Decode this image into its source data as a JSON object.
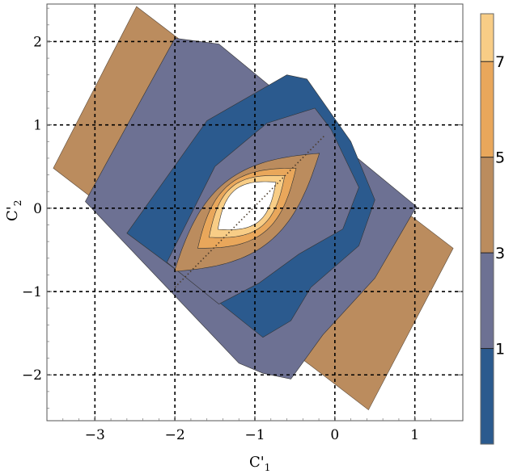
{
  "chart_data": {
    "type": "contour",
    "xlabel": "C'1",
    "ylabel": "C'2",
    "xlabel_main": "C'",
    "xlabel_sub": "1",
    "ylabel_main": "C'",
    "ylabel_sub": "2",
    "xlim": [
      -3.6,
      1.6
    ],
    "ylim": [
      -2.55,
      2.45
    ],
    "x_ticks": [
      -3,
      -2,
      -1,
      0,
      1
    ],
    "x_tick_labels": [
      "−3",
      "−2",
      "−1",
      "0",
      "1"
    ],
    "y_ticks": [
      -2,
      -1,
      0,
      1,
      2
    ],
    "y_tick_labels": [
      "−2",
      "−1",
      "0",
      "1",
      "2"
    ],
    "grid": true,
    "grid_style": "dashed",
    "levels": [
      0,
      1,
      3,
      5,
      7
    ],
    "colorbar": {
      "range": [
        -1,
        8
      ],
      "tick_values": [
        1,
        3,
        5,
        7
      ],
      "tick_labels": [
        "1",
        "3",
        "5",
        "7"
      ],
      "bands": [
        {
          "from": -1,
          "to": 1,
          "color": "#2b5a8e"
        },
        {
          "from": 1,
          "to": 3,
          "color": "#6d7193"
        },
        {
          "from": 3,
          "to": 5,
          "color": "#bb8c5e"
        },
        {
          "from": 5,
          "to": 7,
          "color": "#e9a75b"
        },
        {
          "from": 7,
          "to": 8,
          "color": "#f8cd86"
        }
      ]
    },
    "colors": {
      "band_blue": "#2b5a8e",
      "band_slate": "#6d7193",
      "band_tan": "#bb8c5e",
      "band_orange": "#e9a75b",
      "band_light": "#f8cd86",
      "center_white": "#ffffff"
    }
  }
}
